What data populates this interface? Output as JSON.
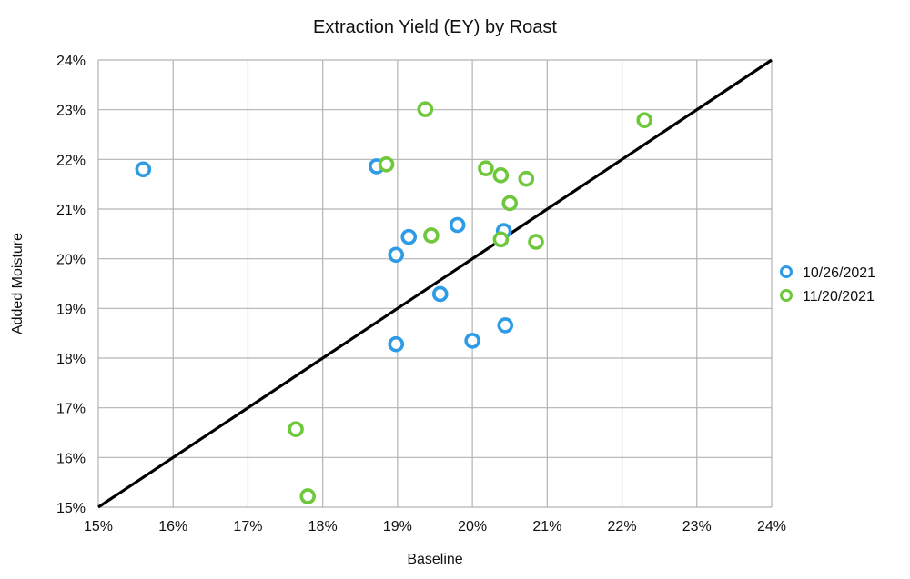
{
  "chart_data": {
    "type": "scatter",
    "title": "Extraction Yield (EY) by Roast",
    "xlabel": "Baseline",
    "ylabel": "Added Moisture",
    "xlim": [
      15,
      24
    ],
    "ylim": [
      15,
      24
    ],
    "x_ticks": [
      15,
      16,
      17,
      18,
      19,
      20,
      21,
      22,
      23,
      24
    ],
    "y_ticks": [
      15,
      16,
      17,
      18,
      19,
      20,
      21,
      22,
      23,
      24
    ],
    "x_tick_labels": [
      "15%",
      "16%",
      "17%",
      "18%",
      "19%",
      "20%",
      "21%",
      "22%",
      "23%",
      "24%"
    ],
    "y_tick_labels": [
      "15%",
      "16%",
      "17%",
      "18%",
      "19%",
      "20%",
      "21%",
      "22%",
      "23%",
      "24%"
    ],
    "grid": true,
    "legend_position": "right",
    "reference_line": {
      "name": "y = x",
      "points": [
        [
          15,
          15
        ],
        [
          24,
          24
        ]
      ],
      "color": "#000000"
    },
    "series": [
      {
        "name": "10/26/2021",
        "color": "#2e9be6",
        "points": [
          [
            15.6,
            21.8
          ],
          [
            18.72,
            21.86
          ],
          [
            19.15,
            20.44
          ],
          [
            18.98,
            20.08
          ],
          [
            19.8,
            20.68
          ],
          [
            20.42,
            20.56
          ],
          [
            19.57,
            19.29
          ],
          [
            18.98,
            18.28
          ],
          [
            20.0,
            18.35
          ],
          [
            20.44,
            18.66
          ]
        ]
      },
      {
        "name": "11/20/2021",
        "color": "#6fc83c",
        "points": [
          [
            19.37,
            23.01
          ],
          [
            22.3,
            22.79
          ],
          [
            18.85,
            21.9
          ],
          [
            20.18,
            21.82
          ],
          [
            20.38,
            21.68
          ],
          [
            20.72,
            21.61
          ],
          [
            20.5,
            21.12
          ],
          [
            19.45,
            20.47
          ],
          [
            20.38,
            20.39
          ],
          [
            20.85,
            20.34
          ],
          [
            17.64,
            16.57
          ],
          [
            17.8,
            15.22
          ]
        ]
      }
    ]
  }
}
